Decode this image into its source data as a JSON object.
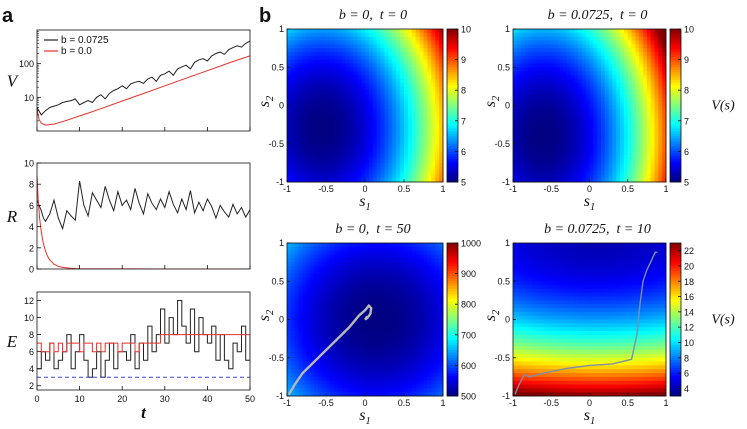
{
  "panel_labels": {
    "a": "a",
    "b": "b"
  },
  "chart_data": [
    {
      "type": "line",
      "id": "V",
      "ylabel": "V",
      "xlabel": "",
      "yscale": "log",
      "xlim": [
        0,
        50
      ],
      "ylim": [
        1,
        1000
      ],
      "yticks": [
        {
          "v": 10,
          "label": "10"
        },
        {
          "v": 100,
          "label": "100"
        }
      ],
      "legend": {
        "placement": "top-left",
        "entries": [
          {
            "label": "b = 0.0725",
            "color": "#222222"
          },
          {
            "label": "b = 0.0",
            "color": "#e8302a"
          }
        ]
      },
      "series": [
        {
          "name": "b = 0.0725",
          "color": "#222222",
          "x": [
            0,
            1,
            2,
            3,
            4,
            5,
            6,
            7,
            8,
            9,
            10,
            11,
            12,
            13,
            14,
            15,
            16,
            17,
            18,
            19,
            20,
            21,
            22,
            23,
            24,
            25,
            26,
            27,
            28,
            29,
            30,
            31,
            32,
            33,
            34,
            35,
            36,
            37,
            38,
            39,
            40,
            41,
            42,
            43,
            44,
            45,
            46,
            47,
            48,
            49,
            50
          ],
          "y": [
            5,
            3,
            4,
            5,
            5.5,
            6,
            7,
            7.5,
            8,
            9,
            6,
            7,
            8,
            7,
            10,
            12,
            9,
            13,
            16,
            18,
            22,
            18,
            25,
            28,
            30,
            26,
            35,
            40,
            30,
            45,
            50,
            60,
            45,
            70,
            80,
            90,
            70,
            110,
            130,
            140,
            120,
            170,
            200,
            220,
            190,
            260,
            300,
            340,
            310,
            400,
            470
          ]
        },
        {
          "name": "b = 0.0",
          "color": "#e8302a",
          "x": [
            0,
            0.5,
            1,
            2,
            3,
            4,
            5,
            6,
            8,
            10,
            12,
            15,
            20,
            25,
            30,
            35,
            40,
            45,
            50
          ],
          "y": [
            4.5,
            2.2,
            1.7,
            1.5,
            1.55,
            1.6,
            1.75,
            1.9,
            2.3,
            2.8,
            3.4,
            4.6,
            7.8,
            13,
            22,
            37,
            62,
            105,
            170
          ]
        }
      ]
    },
    {
      "type": "line",
      "id": "R",
      "ylabel": "R",
      "xlabel": "",
      "xlim": [
        0,
        50
      ],
      "ylim": [
        0,
        10
      ],
      "yticks": [
        {
          "v": 0,
          "label": "0"
        },
        {
          "v": 2,
          "label": "2"
        },
        {
          "v": 4,
          "label": "4"
        },
        {
          "v": 6,
          "label": "6"
        },
        {
          "v": 8,
          "label": "8"
        },
        {
          "v": 10,
          "label": "10"
        }
      ],
      "series": [
        {
          "name": "b = 0.0725",
          "color": "#222222",
          "x": [
            0,
            0.5,
            1,
            1.5,
            2,
            3,
            4,
            5,
            6,
            7,
            8,
            9,
            10,
            11,
            12,
            13,
            14,
            15,
            16,
            17,
            18,
            19,
            20,
            21,
            22,
            23,
            24,
            25,
            26,
            27,
            28,
            29,
            30,
            31,
            32,
            33,
            34,
            35,
            36,
            37,
            38,
            39,
            40,
            41,
            42,
            43,
            44,
            45,
            46,
            47,
            48,
            49,
            50
          ],
          "y": [
            6.5,
            6,
            5.5,
            4.8,
            4.5,
            5.2,
            6.5,
            4.8,
            3.8,
            5.5,
            5,
            4.6,
            8.3,
            6,
            5,
            7.2,
            6.5,
            5.8,
            7.8,
            6.5,
            5.5,
            7.3,
            6,
            6.5,
            5.6,
            7.6,
            6.2,
            5.2,
            7.1,
            6.2,
            5.6,
            6.6,
            5.8,
            7.3,
            6.1,
            5.3,
            6.6,
            5.6,
            7.4,
            5.3,
            6.3,
            5.5,
            6.6,
            5.9,
            4.8,
            6,
            5.4,
            4.9,
            6.1,
            5.2,
            5.8,
            4.9,
            5.6
          ]
        },
        {
          "name": "b = 0.0",
          "color": "#e8302a",
          "x": [
            0,
            0.3,
            0.6,
            1,
            1.5,
            2,
            2.5,
            3,
            4,
            5,
            6,
            8,
            10,
            15,
            20,
            30,
            40,
            50
          ],
          "y": [
            8.8,
            6.4,
            4.8,
            3.5,
            2.4,
            1.7,
            1.2,
            0.85,
            0.45,
            0.25,
            0.15,
            0.06,
            0.03,
            0.01,
            0.005,
            0.003,
            0.002,
            0.001
          ]
        }
      ]
    },
    {
      "type": "line",
      "id": "E",
      "ylabel": "E",
      "xlabel": "t",
      "xlim": [
        0,
        50
      ],
      "ylim": [
        1.5,
        13
      ],
      "yticks": [
        {
          "v": 2,
          "label": "2"
        },
        {
          "v": 4,
          "label": "4"
        },
        {
          "v": 6,
          "label": "6"
        },
        {
          "v": 8,
          "label": "8"
        },
        {
          "v": 10,
          "label": "10"
        },
        {
          "v": 12,
          "label": "12"
        }
      ],
      "xticks": [
        {
          "v": 0,
          "label": "0"
        },
        {
          "v": 10,
          "label": "10"
        },
        {
          "v": 20,
          "label": "20"
        },
        {
          "v": 30,
          "label": "30"
        },
        {
          "v": 40,
          "label": "40"
        },
        {
          "v": 50,
          "label": "50"
        }
      ],
      "series": [
        {
          "name": "black",
          "color": "#222222",
          "step": true,
          "x": [
            0,
            1,
            2,
            3,
            4,
            5,
            6,
            7,
            8,
            9,
            10,
            11,
            12,
            13,
            14,
            15,
            16,
            17,
            18,
            19,
            20,
            21,
            22,
            23,
            24,
            25,
            26,
            27,
            28,
            29,
            30,
            31,
            32,
            33,
            34,
            35,
            36,
            37,
            38,
            39,
            40,
            41,
            42,
            43,
            44,
            45,
            46,
            47,
            48,
            49,
            50
          ],
          "y": [
            4,
            6,
            5,
            7,
            4,
            5,
            6,
            8,
            4,
            6,
            8,
            5,
            3,
            4,
            6,
            3,
            5,
            7,
            4,
            6,
            6,
            5,
            8,
            4,
            7,
            5,
            9,
            6,
            8,
            11,
            7,
            10,
            8,
            12,
            9,
            7,
            11,
            6,
            10,
            8,
            7,
            9,
            5,
            8,
            5,
            4,
            7,
            6,
            9,
            5,
            8
          ]
        },
        {
          "name": "red",
          "color": "#e8302a",
          "step": true,
          "x": [
            0,
            1,
            2,
            3,
            4,
            5,
            6,
            7,
            8,
            9,
            10,
            11,
            12,
            13,
            14,
            15,
            16,
            17,
            18,
            19,
            20,
            21,
            22,
            23,
            24,
            25,
            26,
            27,
            28,
            29,
            30,
            50
          ],
          "y": [
            7,
            6,
            6,
            7,
            6,
            7,
            6,
            7,
            7,
            7,
            6,
            7,
            7,
            6,
            7,
            6,
            7,
            7,
            7,
            6,
            7,
            7,
            7,
            6,
            7,
            7,
            7,
            7,
            7,
            8,
            8,
            8
          ]
        },
        {
          "name": "blue-dashed",
          "color": "#3a48d8",
          "dashed": true,
          "x": [
            0,
            50
          ],
          "y": [
            3,
            3
          ]
        }
      ]
    },
    {
      "type": "heatmap",
      "id": "h1",
      "title": "b = 0,  t = 0",
      "xlabel": "s1",
      "ylabel": "s2",
      "xlim": [
        -1,
        1
      ],
      "ylim": [
        -1,
        1
      ],
      "colorbar": {
        "min": 5,
        "max": 10,
        "ticks": [
          5,
          6,
          7,
          8,
          9,
          10
        ],
        "label": ""
      },
      "field": {
        "cx": -0.55,
        "cy": -0.3,
        "kx": 2.6,
        "ky": 1.5
      }
    },
    {
      "type": "heatmap",
      "id": "h2",
      "title": "b = 0.0725,  t = 0",
      "xlabel": "s1",
      "ylabel": "s2",
      "xlim": [
        -1,
        1
      ],
      "ylim": [
        -1,
        1
      ],
      "colorbar": {
        "min": 5,
        "max": 10,
        "ticks": [
          5,
          6,
          7,
          8,
          9,
          10
        ],
        "label": "V(s)"
      },
      "field": {
        "cx": -0.6,
        "cy": -0.4,
        "kx": 2.8,
        "ky": 1.4
      }
    },
    {
      "type": "heatmap",
      "id": "h3",
      "title": "b = 0,  t = 50",
      "xlabel": "s1",
      "ylabel": "s2",
      "xlim": [
        -1,
        1
      ],
      "ylim": [
        -1,
        1
      ],
      "colorbar": {
        "min": 500,
        "max": 1000,
        "ticks": [
          500,
          600,
          700,
          800,
          900,
          1000
        ],
        "label": ""
      },
      "field": {
        "cx": 0.15,
        "cy": 0.0,
        "kx": 1.2,
        "ky": 1.2
      },
      "trajectory": {
        "x": [
          -0.97,
          -0.9,
          -0.8,
          -0.65,
          -0.5,
          -0.35,
          -0.2,
          -0.08,
          0.0,
          0.05,
          0.08,
          0.07,
          0.03,
          0.0,
          0.02
        ],
        "y": [
          -0.97,
          -0.85,
          -0.7,
          -0.55,
          -0.4,
          -0.25,
          -0.1,
          0.05,
          0.12,
          0.18,
          0.15,
          0.08,
          0.02,
          0.0,
          0.03
        ]
      }
    },
    {
      "type": "heatmap",
      "id": "h4",
      "title": "b = 0.0725,  t = 10",
      "xlabel": "s1",
      "ylabel": "s2",
      "xlim": [
        -1,
        1
      ],
      "ylim": [
        -1,
        1
      ],
      "colorbar": {
        "min": 3,
        "max": 23,
        "ticks": [
          4,
          6,
          8,
          10,
          12,
          14,
          16,
          18,
          20,
          22
        ],
        "label": "V(s)"
      },
      "field": {
        "cx": 0.1,
        "cy": 0.75,
        "kx": 0.35,
        "ky": 1.9
      },
      "trajectory": {
        "x": [
          -0.97,
          -0.92,
          -0.85,
          -0.78,
          -0.6,
          -0.3,
          0.0,
          0.3,
          0.55,
          0.62,
          0.66,
          0.7,
          0.75,
          0.8,
          0.83,
          0.86,
          0.88
        ],
        "y": [
          -0.97,
          -0.85,
          -0.72,
          -0.75,
          -0.7,
          -0.64,
          -0.6,
          -0.58,
          -0.52,
          -0.2,
          0.2,
          0.5,
          0.65,
          0.75,
          0.82,
          0.88,
          0.88
        ]
      }
    }
  ]
}
